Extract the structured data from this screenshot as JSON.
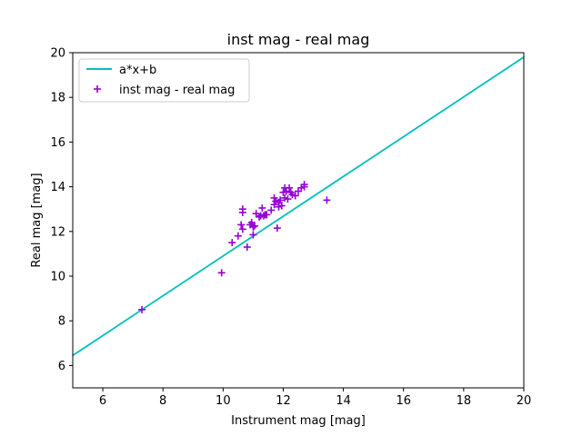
{
  "chart_data": {
    "type": "scatter",
    "title": "inst mag - real mag",
    "xlabel": "Instrument mag [mag]",
    "ylabel": "Real mag [mag]",
    "xlim": [
      5,
      20
    ],
    "ylim": [
      5,
      20
    ],
    "xticks": [
      6,
      8,
      10,
      12,
      14,
      16,
      18,
      20
    ],
    "yticks": [
      6,
      8,
      10,
      12,
      14,
      16,
      18,
      20
    ],
    "grid": false,
    "legend_position": "top-left",
    "series": [
      {
        "name": "a*x+b",
        "kind": "line",
        "color": "#00bfbf",
        "x": [
          5,
          20
        ],
        "y": [
          6.45,
          19.8
        ]
      },
      {
        "name": "inst mag - real mag",
        "kind": "scatter",
        "marker": "plus",
        "color": "#9400d3",
        "x": [
          7.3,
          9.95,
          10.3,
          10.5,
          10.6,
          10.65,
          10.65,
          10.65,
          10.8,
          10.9,
          10.95,
          11.0,
          11.0,
          11.05,
          11.1,
          11.2,
          11.25,
          11.3,
          11.35,
          11.4,
          11.45,
          11.6,
          11.7,
          11.7,
          11.75,
          11.8,
          11.85,
          11.85,
          11.9,
          11.95,
          12.0,
          12.05,
          12.05,
          12.1,
          12.15,
          12.2,
          12.25,
          12.3,
          12.4,
          12.5,
          12.6,
          12.7,
          12.7,
          13.45
        ],
        "y": [
          8.5,
          10.15,
          11.5,
          11.8,
          12.3,
          12.85,
          13.0,
          12.1,
          11.3,
          12.3,
          12.4,
          11.85,
          12.2,
          12.25,
          12.8,
          12.65,
          12.7,
          13.05,
          12.7,
          12.75,
          12.75,
          12.95,
          13.2,
          13.5,
          13.35,
          12.15,
          13.1,
          13.3,
          13.4,
          13.15,
          13.75,
          13.95,
          13.5,
          13.8,
          13.45,
          13.95,
          13.75,
          13.65,
          13.6,
          13.8,
          13.95,
          14.1,
          14.0,
          13.4
        ]
      }
    ]
  }
}
